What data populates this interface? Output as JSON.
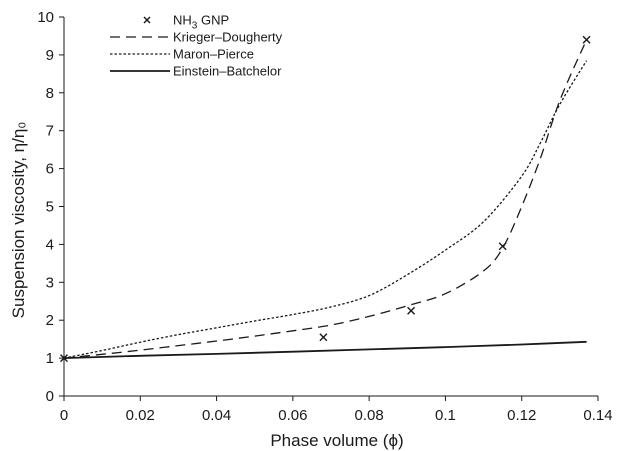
{
  "chart_data": {
    "type": "scatter",
    "title": "",
    "xlabel": "Phase volume (ϕ)",
    "ylabel": "Suspension viscosity, η/η₀",
    "xlim": [
      0,
      0.14
    ],
    "ylim": [
      0,
      10
    ],
    "x_ticks": [
      "0",
      "0.02",
      "0.04",
      "0.06",
      "0.08",
      "0.1",
      "0.12",
      "0.14"
    ],
    "y_ticks": [
      "0",
      "1",
      "2",
      "3",
      "4",
      "5",
      "6",
      "7",
      "8",
      "9",
      "10"
    ],
    "grid": false,
    "legend_position": "top-left",
    "series": [
      {
        "name": "NH3 GNP",
        "style": "markers-x",
        "x": [
          0,
          0.068,
          0.091,
          0.115,
          0.137
        ],
        "y": [
          1.0,
          1.55,
          2.25,
          3.95,
          9.4
        ]
      },
      {
        "name": "Krieger–Dougherty",
        "style": "dashed",
        "x": [
          0,
          0.01,
          0.02,
          0.03,
          0.04,
          0.05,
          0.06,
          0.07,
          0.08,
          0.09,
          0.1,
          0.11,
          0.115,
          0.12,
          0.125,
          0.13,
          0.137
        ],
        "y": [
          1.0,
          1.1,
          1.21,
          1.33,
          1.45,
          1.58,
          1.72,
          1.87,
          2.1,
          2.38,
          2.7,
          3.3,
          3.9,
          5.0,
          6.3,
          7.8,
          9.4
        ]
      },
      {
        "name": "Maron–Pierce",
        "style": "dotted",
        "x": [
          0,
          0.01,
          0.02,
          0.03,
          0.04,
          0.05,
          0.06,
          0.07,
          0.08,
          0.09,
          0.1,
          0.11,
          0.12,
          0.125,
          0.13,
          0.137
        ],
        "y": [
          1.0,
          1.2,
          1.42,
          1.62,
          1.8,
          1.98,
          2.15,
          2.35,
          2.65,
          3.2,
          3.85,
          4.6,
          5.8,
          6.7,
          7.7,
          8.85
        ]
      },
      {
        "name": "Einstein–Batchelor",
        "style": "solid",
        "x": [
          0,
          0.02,
          0.04,
          0.06,
          0.08,
          0.1,
          0.12,
          0.137
        ],
        "y": [
          1.0,
          1.06,
          1.11,
          1.17,
          1.23,
          1.29,
          1.36,
          1.43
        ]
      }
    ]
  }
}
